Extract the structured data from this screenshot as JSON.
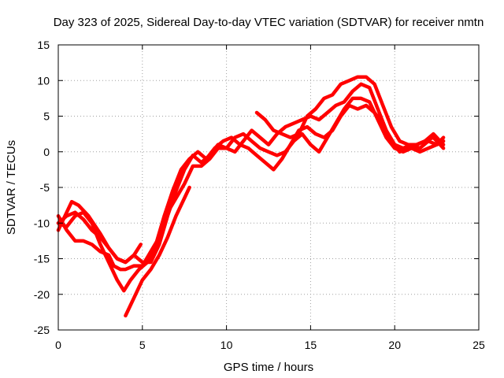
{
  "chart_data": {
    "type": "line",
    "title": "Day 323 of 2025, Sidereal Day-to-day VTEC variation (SDTVAR) for receiver nmtn",
    "xlabel": "GPS time / hours",
    "ylabel": "SDTVAR / TECUs",
    "xlim": [
      0,
      25
    ],
    "ylim": [
      -25,
      15
    ],
    "xticks": [
      0,
      5,
      10,
      15,
      20,
      25
    ],
    "yticks": [
      -25,
      -20,
      -15,
      -10,
      -5,
      0,
      5,
      10,
      15
    ],
    "grid": true,
    "color": "#ff0000",
    "series": [
      {
        "values": [
          [
            0,
            -11.0
          ],
          [
            0.3,
            -9.5
          ],
          [
            0.8,
            -7.0
          ],
          [
            1.2,
            -7.5
          ],
          [
            1.8,
            -9.0
          ],
          [
            2.5,
            -11.5
          ],
          [
            3.0,
            -13.5
          ],
          [
            3.5,
            -15.0
          ],
          [
            4.0,
            -15.5
          ],
          [
            4.5,
            -14.5
          ],
          [
            5.0,
            -15.5
          ],
          [
            5.5,
            -15.5
          ],
          [
            6.0,
            -13.0
          ],
          [
            6.5,
            -9.0
          ],
          [
            7.0,
            -5.5
          ],
          [
            7.5,
            -2.5
          ],
          [
            8.0,
            -0.5
          ],
          [
            8.5,
            -1.5
          ],
          [
            9.0,
            -0.5
          ],
          [
            9.5,
            1.0
          ],
          [
            10.0,
            0.5
          ],
          [
            10.5,
            0.0
          ],
          [
            11.0,
            1.5
          ],
          [
            11.5,
            3.0
          ],
          [
            12.0,
            2.0
          ],
          [
            12.5,
            1.0
          ],
          [
            13.0,
            2.5
          ],
          [
            13.5,
            3.5
          ],
          [
            14.0,
            4.0
          ],
          [
            14.5,
            4.5
          ],
          [
            15.0,
            5.0
          ],
          [
            15.5,
            4.5
          ],
          [
            16.0,
            5.5
          ],
          [
            16.5,
            6.5
          ],
          [
            17.0,
            7.0
          ],
          [
            17.5,
            8.5
          ],
          [
            18.0,
            9.5
          ],
          [
            18.5,
            9.0
          ],
          [
            19.0,
            6.0
          ],
          [
            19.5,
            3.0
          ],
          [
            20.0,
            1.0
          ],
          [
            20.5,
            0.5
          ],
          [
            21.0,
            1.0
          ],
          [
            21.5,
            0.5
          ],
          [
            22.0,
            1.5
          ],
          [
            22.5,
            1.0
          ],
          [
            22.9,
            1.5
          ]
        ]
      },
      {
        "values": [
          [
            0,
            -10.0
          ],
          [
            0.5,
            -10.5
          ],
          [
            1.0,
            -9.0
          ],
          [
            1.5,
            -8.5
          ],
          [
            2.0,
            -10.0
          ],
          [
            2.5,
            -13.0
          ],
          [
            3.0,
            -15.5
          ],
          [
            3.5,
            -18.0
          ],
          [
            3.9,
            -19.5
          ],
          [
            4.3,
            -18.0
          ],
          [
            4.8,
            -16.5
          ],
          [
            5.3,
            -15.5
          ],
          [
            5.8,
            -13.0
          ],
          [
            6.3,
            -9.0
          ],
          [
            6.8,
            -5.5
          ],
          [
            7.3,
            -2.5
          ],
          [
            7.8,
            -1.0
          ],
          [
            8.3,
            0.0
          ],
          [
            8.8,
            -1.0
          ],
          [
            9.3,
            0.5
          ],
          [
            9.8,
            1.5
          ],
          [
            10.3,
            2.0
          ],
          [
            10.8,
            1.0
          ],
          [
            11.3,
            0.5
          ],
          [
            11.8,
            -0.5
          ],
          [
            12.3,
            -1.5
          ],
          [
            12.8,
            -2.5
          ],
          [
            13.3,
            -1.0
          ],
          [
            13.8,
            1.0
          ],
          [
            14.3,
            3.0
          ],
          [
            14.8,
            3.5
          ],
          [
            15.3,
            2.5
          ],
          [
            15.8,
            2.0
          ],
          [
            16.3,
            3.0
          ],
          [
            16.8,
            5.0
          ],
          [
            17.3,
            6.5
          ],
          [
            17.8,
            6.0
          ],
          [
            18.3,
            6.5
          ],
          [
            18.8,
            5.5
          ],
          [
            19.3,
            4.0
          ],
          [
            19.8,
            1.5
          ],
          [
            20.3,
            0.0
          ],
          [
            20.8,
            0.5
          ],
          [
            21.3,
            1.0
          ],
          [
            21.8,
            1.5
          ],
          [
            22.3,
            2.0
          ],
          [
            22.9,
            0.5
          ]
        ]
      },
      {
        "values": [
          [
            0,
            -9.0
          ],
          [
            0.5,
            -11.0
          ],
          [
            1.0,
            -12.5
          ],
          [
            1.5,
            -12.5
          ],
          [
            2.0,
            -13.0
          ],
          [
            2.5,
            -14.0
          ],
          [
            3.0,
            -14.5
          ],
          [
            3.3,
            -16.0
          ],
          [
            3.7,
            -16.5
          ],
          [
            4.0,
            -16.5
          ],
          [
            4.5,
            -16.0
          ],
          [
            5.0,
            -16.0
          ],
          [
            5.5,
            -14.0
          ],
          [
            6.0,
            -12.0
          ],
          [
            6.5,
            -8.5
          ],
          [
            7.0,
            -6.5
          ],
          [
            7.5,
            -4.5
          ],
          [
            8.0,
            -2.0
          ],
          [
            8.5,
            -2.0
          ],
          [
            9.0,
            -1.0
          ],
          [
            9.5,
            0.5
          ],
          [
            10.0,
            0.5
          ],
          [
            10.5,
            2.0
          ],
          [
            11.0,
            2.5
          ],
          [
            11.5,
            1.5
          ],
          [
            12.0,
            0.5
          ],
          [
            12.5,
            0.0
          ],
          [
            13.0,
            -0.5
          ],
          [
            13.5,
            0.0
          ],
          [
            14.0,
            1.5
          ],
          [
            14.5,
            2.5
          ],
          [
            15.0,
            1.0
          ],
          [
            15.5,
            0.0
          ],
          [
            16.0,
            2.0
          ],
          [
            16.5,
            4.0
          ],
          [
            17.0,
            6.0
          ],
          [
            17.5,
            7.5
          ],
          [
            18.0,
            7.5
          ],
          [
            18.5,
            7.0
          ],
          [
            19.0,
            4.5
          ],
          [
            19.5,
            2.0
          ],
          [
            20.0,
            0.5
          ],
          [
            20.5,
            0.0
          ],
          [
            21.0,
            0.5
          ],
          [
            21.5,
            0.0
          ],
          [
            22.0,
            0.5
          ],
          [
            22.5,
            1.0
          ],
          [
            22.9,
            2.0
          ]
        ]
      },
      {
        "values": [
          [
            0,
            -10.0
          ],
          [
            0.5,
            -9.0
          ],
          [
            1.0,
            -8.5
          ],
          [
            1.5,
            -9.5
          ],
          [
            2.0,
            -11.0
          ],
          [
            2.5,
            -12.0
          ],
          [
            3.0,
            -13.5
          ],
          [
            3.5,
            -15.0
          ],
          [
            4.0,
            -15.5
          ],
          [
            4.5,
            -14.5
          ],
          [
            4.9,
            -13.0
          ]
        ]
      },
      {
        "values": [
          [
            4.0,
            -23.0
          ],
          [
            4.5,
            -20.5
          ],
          [
            5.0,
            -18.0
          ],
          [
            5.5,
            -16.5
          ],
          [
            6.0,
            -14.5
          ],
          [
            6.5,
            -12.0
          ],
          [
            7.0,
            -9.0
          ],
          [
            7.5,
            -6.5
          ],
          [
            7.8,
            -5.0
          ]
        ]
      },
      {
        "values": [
          [
            11.8,
            5.5
          ],
          [
            12.3,
            4.5
          ],
          [
            12.8,
            3.0
          ],
          [
            13.3,
            2.5
          ],
          [
            13.8,
            2.0
          ],
          [
            14.3,
            2.5
          ],
          [
            14.8,
            5.0
          ],
          [
            15.3,
            6.0
          ],
          [
            15.8,
            7.5
          ],
          [
            16.3,
            8.0
          ],
          [
            16.8,
            9.5
          ],
          [
            17.3,
            10.0
          ],
          [
            17.8,
            10.5
          ],
          [
            18.3,
            10.5
          ],
          [
            18.8,
            9.5
          ],
          [
            19.3,
            6.5
          ],
          [
            19.8,
            3.5
          ],
          [
            20.3,
            1.5
          ],
          [
            20.8,
            1.0
          ],
          [
            21.3,
            1.0
          ],
          [
            21.8,
            1.5
          ],
          [
            22.3,
            2.5
          ],
          [
            22.9,
            1.0
          ]
        ]
      }
    ]
  }
}
